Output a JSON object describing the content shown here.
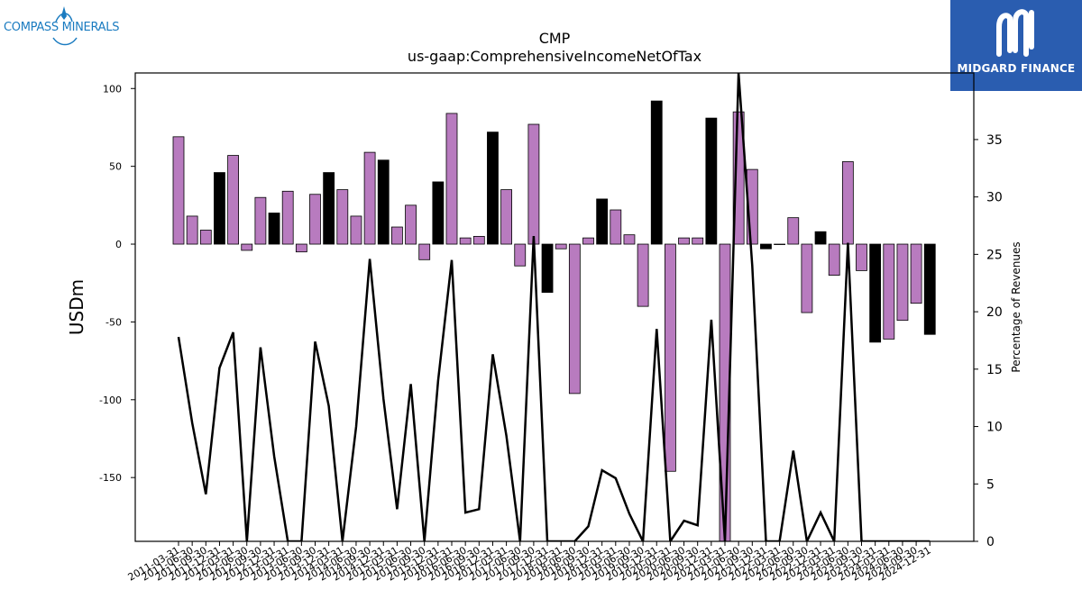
{
  "logos": {
    "left": "COMPASS MINERALS",
    "right": "MIDGARD FINANCE"
  },
  "chart_data": {
    "type": "bar",
    "title": "CMP",
    "subtitle": "us-gaap:ComprehensiveIncomeNetOfTax",
    "ylabel": "USDm",
    "y2label": "Percentage of Revenues",
    "ylim": [
      -191,
      110
    ],
    "y2lim": [
      0,
      40.8
    ],
    "yticks": [
      100,
      50,
      0,
      -50,
      -100,
      -150
    ],
    "y2ticks": [
      35,
      30,
      25,
      20,
      15,
      10,
      5,
      0
    ],
    "colors": {
      "bar_default": "#b87bbf",
      "bar_highlight": "#000000",
      "line": "#000000",
      "bar_edge": "#000000"
    },
    "categories": [
      "2011-03-31",
      "2011-06-30",
      "2011-09-30",
      "2011-12-31",
      "2012-03-31",
      "2012-06-30",
      "2012-09-30",
      "2012-12-31",
      "2013-03-31",
      "2013-06-30",
      "2013-09-30",
      "2013-12-31",
      "2014-03-31",
      "2014-06-30",
      "2014-09-30",
      "2014-12-31",
      "2015-03-31",
      "2015-06-30",
      "2015-09-30",
      "2015-12-31",
      "2016-03-31",
      "2016-06-30",
      "2016-09-30",
      "2016-12-31",
      "2017-03-31",
      "2017-06-30",
      "2017-09-30",
      "2017-12-31",
      "2018-03-31",
      "2018-06-30",
      "2018-09-30",
      "2018-12-31",
      "2019-03-31",
      "2019-06-30",
      "2019-09-30",
      "2019-12-31",
      "2020-03-31",
      "2020-06-30",
      "2020-09-30",
      "2020-12-31",
      "2021-03-31",
      "2021-06-30",
      "2021-09-30",
      "2021-12-31",
      "2022-03-31",
      "2022-06-30",
      "2022-09-30",
      "2022-12-31",
      "2023-03-31",
      "2023-06-30",
      "2023-09-30",
      "2023-12-31",
      "2024-03-31",
      "2024-06-30",
      "2024-09-30",
      "2024-12-31"
    ],
    "xtick_labels": [
      "2011-03-31",
      "2011-06-30",
      "2011-09-30",
      "2011-12-31",
      "2012-03-31",
      "2012-06-30",
      "2012-09-30",
      "2012-12-31",
      "2013-03-31",
      "2013-06-30",
      "2013-09-30",
      "2013-12-31",
      "2014-03-31",
      "2014-06-30",
      "2014-09-30",
      "2014-12-31",
      "2015-03-31",
      "2015-06-30",
      "2015-09-30",
      "2015-12-31",
      "2016-03-31",
      "2016-06-30",
      "2016-09-30",
      "2016-12-31",
      "2017-03-31",
      "2017-06-30",
      "2017-09-30",
      "2017-12-31",
      "2018-03-31",
      "2018-06-30",
      "2018-09-30",
      "2018-12-31",
      "2019-03-31",
      "2019-06-30",
      "2019-09-30",
      "2019-12-31",
      "2020-03-31",
      "2020-06-30",
      "2020-09-30",
      "2020-12-31",
      "2021-03-31",
      "2021-06-30",
      "2021-09-30",
      "2021-12-31",
      "2022-03-31",
      "2022-06-30",
      "2022-09-30",
      "2022-12-31",
      "2023-03-31",
      "2023-06-30",
      "2023-09-30",
      "2023-12-31",
      "2024-03-31",
      "2024-06-30",
      "2024-09-30",
      "2024-12-31"
    ],
    "series": [
      {
        "kind": "bar",
        "values": [
          69,
          18,
          9,
          46,
          57,
          -4,
          30,
          20,
          34,
          -5,
          32,
          46,
          35,
          18,
          59,
          54,
          11,
          25,
          -10,
          40,
          84,
          4,
          5,
          72,
          35,
          -14,
          77,
          -31,
          -3,
          -96,
          4,
          29,
          22,
          6,
          -40,
          92,
          -146,
          4,
          4,
          81,
          -191,
          85,
          48,
          -3,
          0,
          17,
          -44,
          8,
          -20,
          53,
          -17,
          -63,
          -61,
          -49,
          -38,
          -58
        ],
        "highlight": [
          false,
          false,
          false,
          true,
          false,
          false,
          false,
          true,
          false,
          false,
          false,
          true,
          false,
          false,
          false,
          true,
          false,
          false,
          false,
          true,
          false,
          false,
          false,
          true,
          false,
          false,
          false,
          true,
          false,
          false,
          false,
          true,
          false,
          false,
          false,
          true,
          false,
          false,
          false,
          true,
          false,
          false,
          false,
          true,
          false,
          false,
          false,
          true,
          false,
          false,
          false,
          true,
          false,
          false,
          false,
          true
        ]
      },
      {
        "kind": "line",
        "axis": "right",
        "values": [
          17.8,
          10.3,
          4.1,
          15.1,
          18.2,
          0,
          16.9,
          7.4,
          0,
          0,
          17.4,
          11.8,
          0,
          10,
          24.6,
          12.4,
          2.8,
          13.7,
          0,
          14,
          24.5,
          2.5,
          2.8,
          16.3,
          9.2,
          0,
          26.6,
          0,
          0,
          0,
          1.3,
          6.2,
          5.5,
          2.4,
          0,
          18.5,
          0,
          1.8,
          1.4,
          19.3,
          0,
          40.8,
          24,
          0,
          0,
          7.9,
          0,
          2.5,
          0,
          26,
          0,
          0,
          0,
          0,
          0,
          0
        ]
      }
    ]
  }
}
